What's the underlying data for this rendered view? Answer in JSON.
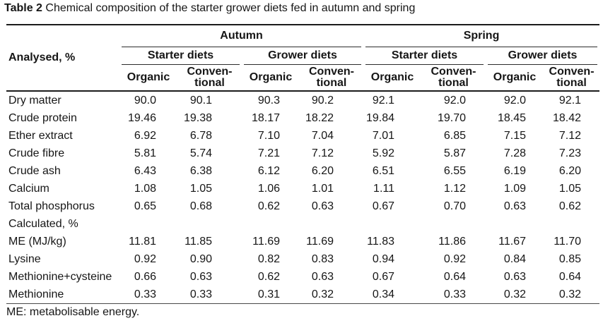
{
  "title": {
    "bold": "Table 2",
    "text": "Chemical composition of the starter grower diets fed in autumn and spring"
  },
  "table": {
    "row_header": "Analysed, %",
    "season_groups": [
      {
        "label": "Autumn"
      },
      {
        "label": "Spring"
      }
    ],
    "diet_groups": [
      {
        "label": "Starter diets"
      },
      {
        "label": "Grower diets"
      },
      {
        "label": "Starter diets"
      },
      {
        "label": "Grower diets"
      }
    ],
    "treatment_cols": [
      {
        "label": "Organic"
      },
      {
        "label": "Conven-\ntional"
      },
      {
        "label": "Organic"
      },
      {
        "label": "Conven-\ntional"
      },
      {
        "label": "Organic"
      },
      {
        "label": "Conven-\ntional"
      },
      {
        "label": "Organic"
      },
      {
        "label": "Conven-\ntional"
      }
    ],
    "rows": [
      {
        "label": "Dry matter",
        "values": [
          "90.0",
          "90.1",
          "90.3",
          "90.2",
          "92.1",
          "92.0",
          "92.0",
          "92.1"
        ]
      },
      {
        "label": "Crude protein",
        "values": [
          "19.46",
          "19.38",
          "18.17",
          "18.22",
          "19.84",
          "19.70",
          "18.45",
          "18.42"
        ]
      },
      {
        "label": "Ether extract",
        "values": [
          "6.92",
          "6.78",
          "7.10",
          "7.04",
          "7.01",
          "6.85",
          "7.15",
          "7.12"
        ]
      },
      {
        "label": "Crude fibre",
        "values": [
          "5.81",
          "5.74",
          "7.21",
          "7.12",
          "5.92",
          "5.87",
          "7.28",
          "7.23"
        ]
      },
      {
        "label": "Crude ash",
        "values": [
          "6.43",
          "6.38",
          "6.12",
          "6.20",
          "6.51",
          "6.55",
          "6.19",
          "6.20"
        ]
      },
      {
        "label": "Calcium",
        "values": [
          "1.08",
          "1.05",
          "1.06",
          "1.01",
          "1.11",
          "1.12",
          "1.09",
          "1.05"
        ]
      },
      {
        "label": "Total phosphorus",
        "values": [
          "0.65",
          "0.68",
          "0.62",
          "0.63",
          "0.67",
          "0.70",
          "0.63",
          "0.62"
        ]
      },
      {
        "label": "Calculated, %",
        "values": [
          "",
          "",
          "",
          "",
          "",
          "",
          "",
          ""
        ]
      },
      {
        "label": "ME (MJ/kg)",
        "values": [
          "11.81",
          "11.85",
          "11.69",
          "11.69",
          "11.83",
          "11.86",
          "11.67",
          "11.70"
        ]
      },
      {
        "label": "Lysine",
        "values": [
          "0.92",
          "0.90",
          "0.82",
          "0.83",
          "0.94",
          "0.92",
          "0.84",
          "0.85"
        ]
      },
      {
        "label": "Methionine+cysteine",
        "values": [
          "0.66",
          "0.63",
          "0.62",
          "0.63",
          "0.67",
          "0.64",
          "0.63",
          "0.64"
        ]
      },
      {
        "label": "Methionine",
        "values": [
          "0.33",
          "0.33",
          "0.31",
          "0.32",
          "0.34",
          "0.33",
          "0.32",
          "0.32"
        ]
      }
    ]
  },
  "footnote": "ME: metabolisable energy."
}
